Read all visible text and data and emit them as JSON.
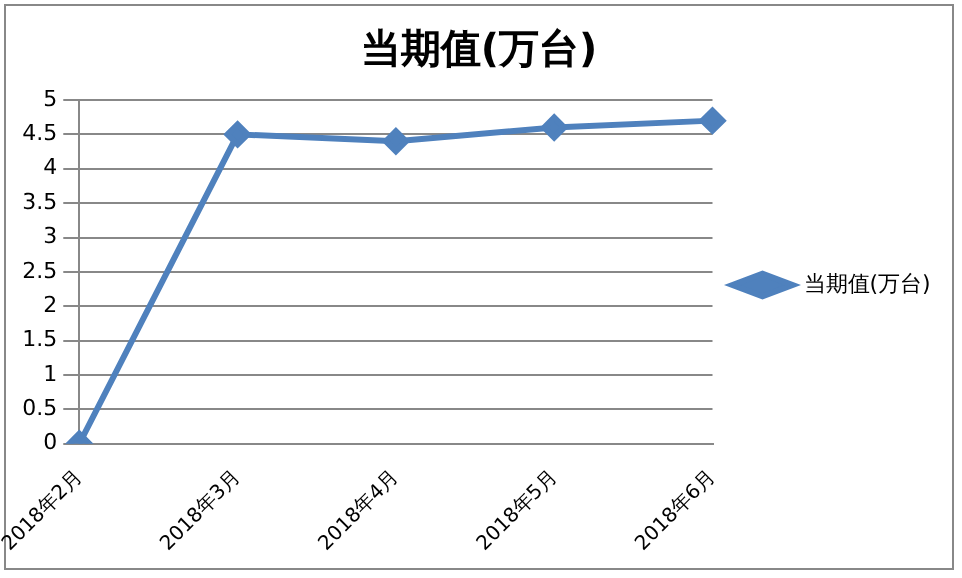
{
  "chart_data": {
    "type": "line",
    "title": "当期值(万台)",
    "categories": [
      "2018年2月",
      "2018年3月",
      "2018年4月",
      "2018年5月",
      "2018年6月"
    ],
    "series": [
      {
        "name": "当期值(万台)",
        "color": "#4f81bd",
        "values": [
          0,
          4.5,
          4.4,
          4.6,
          4.7
        ]
      }
    ],
    "ylim": [
      0,
      5
    ],
    "yticks": [
      0,
      0.5,
      1,
      1.5,
      2,
      2.5,
      3,
      3.5,
      4,
      4.5,
      5
    ],
    "grid": "y",
    "legend": "right",
    "marker": "diamond",
    "line_style": "solid"
  }
}
